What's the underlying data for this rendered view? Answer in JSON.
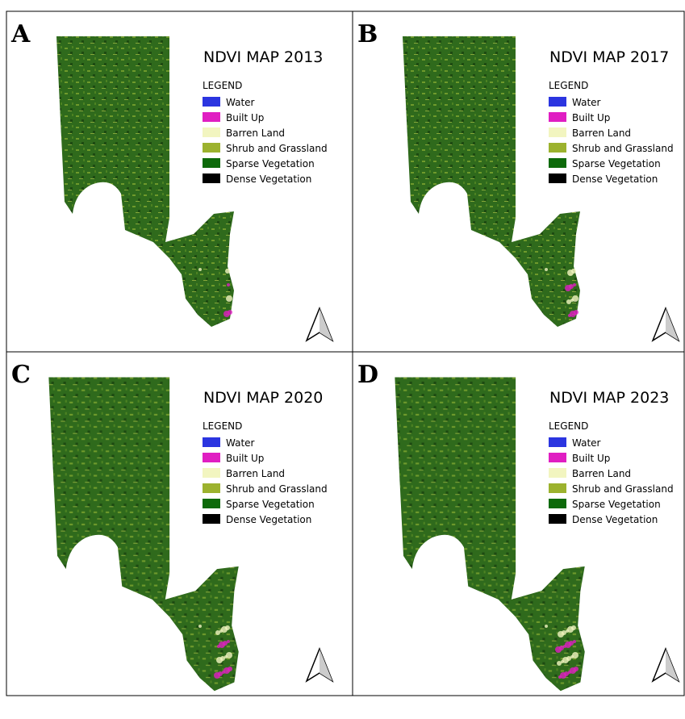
{
  "panels": [
    {
      "label": "A",
      "title": "NDVI MAP 2013"
    },
    {
      "label": "B",
      "title": "NDVI MAP 2017"
    },
    {
      "label": "C",
      "title": "NDVI MAP 2020"
    },
    {
      "label": "D",
      "title": "NDVI MAP 2023"
    }
  ],
  "legend": {
    "title": "LEGEND",
    "items": [
      {
        "name": "Water",
        "color": "#2b35e0"
      },
      {
        "name": "Built Up",
        "color": "#e01ec2"
      },
      {
        "name": "Barren Land",
        "color": "#f2f5c0"
      },
      {
        "name": "Shrub and Grassland",
        "color": "#9cb22e"
      },
      {
        "name": "Sparse Vegetation",
        "color": "#0d6a0a"
      },
      {
        "name": "Dense Vegetation",
        "color": "#000000"
      }
    ]
  }
}
